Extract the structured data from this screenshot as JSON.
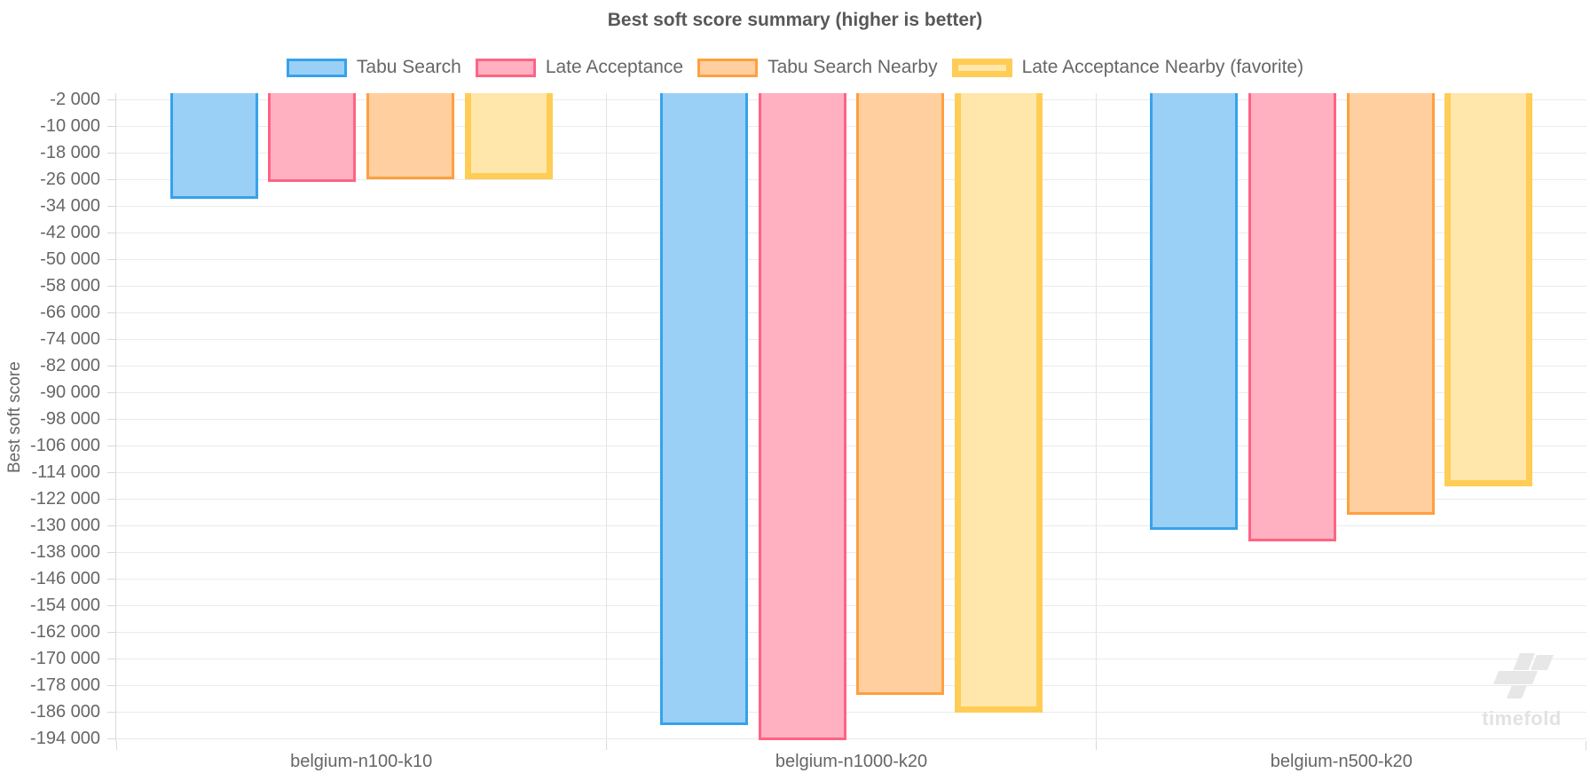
{
  "title": "Best soft score summary (higher is better)",
  "watermark": {
    "text": "timefold"
  },
  "chart_data": {
    "type": "bar",
    "title": "Best soft score summary (higher is better)",
    "xlabel": "",
    "ylabel": "Best soft score",
    "legend_position": "top",
    "grid": true,
    "categories": [
      "belgium-n100-k10",
      "belgium-n1000-k20",
      "belgium-n500-k20"
    ],
    "series": [
      {
        "name": "Tabu Search",
        "border_color": "#36A2EB",
        "fill_color": "#9AD0F5",
        "border_width": 3,
        "values": [
          -31700,
          -189900,
          -131300
        ]
      },
      {
        "name": "Late Acceptance",
        "border_color": "#FF6384",
        "fill_color": "#FFB1C1",
        "border_width": 3,
        "values": [
          -26700,
          -194600,
          -134700
        ]
      },
      {
        "name": "Tabu Search Nearby",
        "border_color": "#FF9F40",
        "fill_color": "#FFCF9F",
        "border_width": 3,
        "values": [
          -25900,
          -181000,
          -126800
        ]
      },
      {
        "name": "Late Acceptance Nearby (favorite)",
        "border_color": "#FFCD56",
        "fill_color": "#FFE6AA",
        "border_width": 7,
        "values": [
          -25800,
          -186200,
          -118200
        ]
      }
    ],
    "ylim": [
      -194800,
      0
    ],
    "yticks": [
      -2000,
      -10000,
      -18000,
      -26000,
      -34000,
      -42000,
      -50000,
      -58000,
      -66000,
      -74000,
      -82000,
      -90000,
      -98000,
      -106000,
      -114000,
      -122000,
      -130000,
      -138000,
      -146000,
      -154000,
      -162000,
      -170000,
      -178000,
      -186000,
      -194000
    ]
  },
  "colors": {
    "grid_horizontal": "#ebebeb",
    "grid_vertical": "#e3e3e3",
    "axis_line": "#d9d9d9",
    "tick_label": "#666666",
    "title": "#58585a",
    "watermark": "#e2e2e2"
  }
}
